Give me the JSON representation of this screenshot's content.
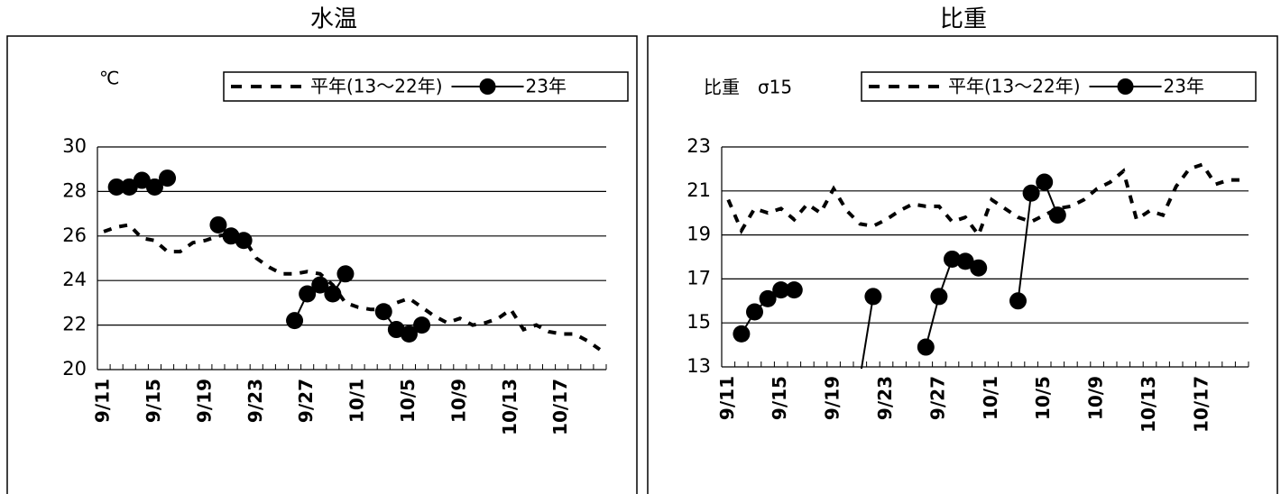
{
  "chart_data": [
    {
      "type": "line",
      "title": "水温",
      "unit_label": "℃",
      "categories": [
        "9/11",
        null,
        null,
        null,
        "9/15",
        null,
        null,
        null,
        "9/19",
        null,
        null,
        null,
        "9/23",
        null,
        null,
        null,
        "9/27",
        null,
        null,
        null,
        "10/1",
        null,
        null,
        null,
        "10/5",
        null,
        null,
        null,
        "10/9",
        null,
        null,
        null,
        "10/13",
        null,
        null,
        null,
        "10/17",
        null,
        null,
        null
      ],
      "series": [
        {
          "name": "平年(13～22年)",
          "color": "#000000",
          "style": "dashed",
          "values": [
            26.2,
            26.4,
            26.5,
            25.9,
            25.8,
            25.3,
            25.3,
            25.7,
            25.8,
            26.0,
            26.1,
            25.9,
            25.0,
            24.6,
            24.3,
            24.3,
            24.4,
            24.3,
            23.8,
            23.0,
            22.8,
            22.7,
            22.7,
            23.0,
            23.2,
            22.8,
            22.4,
            22.1,
            22.3,
            22.0,
            22.1,
            22.3,
            22.7,
            21.8,
            22.0,
            21.7,
            21.6,
            21.6,
            21.3,
            20.9
          ]
        },
        {
          "name": "23年",
          "color": "#000000",
          "style": "markers",
          "values": [
            null,
            28.2,
            28.2,
            28.5,
            28.2,
            28.6,
            null,
            null,
            null,
            26.5,
            26.0,
            25.8,
            null,
            null,
            null,
            22.2,
            23.4,
            23.8,
            23.4,
            24.3,
            null,
            null,
            22.6,
            21.8,
            21.6,
            22.0,
            null,
            null,
            null,
            null,
            null,
            null,
            null,
            null,
            null,
            null,
            null,
            null,
            null,
            null
          ]
        }
      ],
      "ylim": [
        20,
        30
      ],
      "yticks": [
        20,
        22,
        24,
        26,
        28,
        30
      ],
      "grid": true
    },
    {
      "type": "line",
      "title": "比重",
      "unit_label": "比重　σ15",
      "categories": [
        "9/11",
        null,
        null,
        null,
        "9/15",
        null,
        null,
        null,
        "9/19",
        null,
        null,
        null,
        "9/23",
        null,
        null,
        null,
        "9/27",
        null,
        null,
        null,
        "10/1",
        null,
        null,
        null,
        "10/5",
        null,
        null,
        null,
        "10/9",
        null,
        null,
        null,
        "10/13",
        null,
        null,
        null,
        "10/17",
        null,
        null,
        null
      ],
      "series": [
        {
          "name": "平年(13～22年)",
          "color": "#000000",
          "style": "dashed",
          "values": [
            20.6,
            19.2,
            20.2,
            20.0,
            20.2,
            19.7,
            20.4,
            20.0,
            21.1,
            20.1,
            19.5,
            19.4,
            19.7,
            20.1,
            20.4,
            20.3,
            20.3,
            19.6,
            19.8,
            19.0,
            20.6,
            20.2,
            19.8,
            19.6,
            19.9,
            20.2,
            20.3,
            20.6,
            21.1,
            21.4,
            21.9,
            19.7,
            20.1,
            19.9,
            21.2,
            22.0,
            22.2,
            21.3,
            21.5,
            21.5
          ]
        },
        {
          "name": "23年",
          "color": "#000000",
          "style": "markers",
          "values": [
            null,
            14.5,
            15.5,
            16.1,
            16.5,
            16.5,
            null,
            null,
            null,
            null,
            12.5,
            16.2,
            null,
            null,
            null,
            13.9,
            16.2,
            17.9,
            17.8,
            17.5,
            null,
            null,
            16.0,
            20.9,
            21.4,
            19.9,
            null,
            null,
            null,
            null,
            null,
            null,
            null,
            null,
            null,
            null,
            null,
            null,
            null,
            null
          ]
        }
      ],
      "ylim": [
        13,
        23
      ],
      "yticks": [
        13,
        15,
        17,
        19,
        21,
        23
      ],
      "grid": true
    }
  ]
}
